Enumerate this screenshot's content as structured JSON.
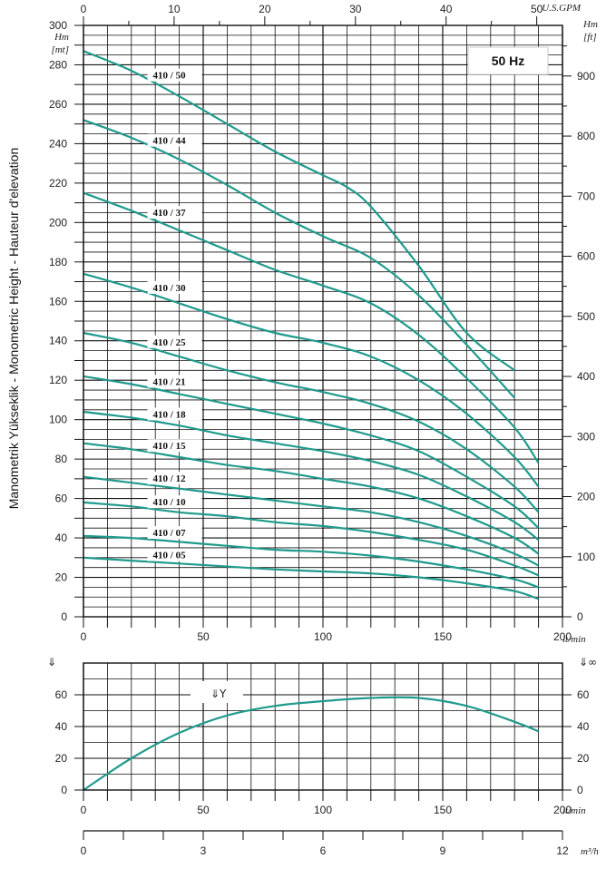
{
  "chart_data": [
    {
      "type": "line",
      "title": "",
      "frequency_label": "50 Hz",
      "side_label": "Manometrik Yükseklik - Monometric Height - Hauteur d'elevation",
      "ylabel_left": [
        "Hm",
        "[mt]"
      ],
      "ylabel_right": [
        "Hm",
        "[ft]"
      ],
      "xlabel_top": "U.S.GPM",
      "xlabel_bottom": "lt/min",
      "xlim": [
        0,
        200
      ],
      "ylim": [
        0,
        300
      ],
      "ylim_right_ft": [
        0,
        984
      ],
      "x_ticks": [
        0,
        50,
        100,
        150,
        200
      ],
      "y_ticks": [
        0,
        20,
        40,
        60,
        80,
        100,
        120,
        140,
        160,
        180,
        200,
        220,
        240,
        260,
        280,
        300
      ],
      "top_ticks_gpm": [
        0,
        10,
        20,
        30,
        40,
        50
      ],
      "right_ticks_ft": [
        0,
        100,
        200,
        300,
        400,
        500,
        600,
        700,
        800,
        900
      ],
      "grid": true,
      "series": [
        {
          "name": "410 / 50",
          "x": [
            0,
            20,
            40,
            60,
            80,
            100,
            110,
            120,
            140,
            160,
            180
          ],
          "y": [
            287,
            277,
            264,
            250,
            236,
            224,
            218,
            208,
            178,
            144,
            125
          ]
        },
        {
          "name": "410 / 44",
          "x": [
            0,
            20,
            40,
            60,
            80,
            100,
            120,
            140,
            160,
            180
          ],
          "y": [
            252,
            243,
            232,
            219,
            205,
            193,
            182,
            163,
            138,
            111
          ]
        },
        {
          "name": "410 / 37",
          "x": [
            0,
            20,
            40,
            60,
            80,
            100,
            120,
            140,
            160,
            180,
            190
          ],
          "y": [
            215,
            206,
            196,
            186,
            176,
            168,
            159,
            143,
            121,
            96,
            78
          ]
        },
        {
          "name": "410 / 30",
          "x": [
            0,
            20,
            40,
            60,
            80,
            100,
            120,
            140,
            160,
            180,
            190
          ],
          "y": [
            174,
            167,
            159,
            151,
            144,
            139,
            132,
            120,
            103,
            81,
            66
          ]
        },
        {
          "name": "410 / 25",
          "x": [
            0,
            20,
            40,
            60,
            80,
            100,
            120,
            140,
            160,
            180,
            190
          ],
          "y": [
            144,
            139,
            132,
            125,
            119,
            114,
            108,
            99,
            85,
            66,
            53
          ]
        },
        {
          "name": "410 / 21",
          "x": [
            0,
            20,
            40,
            60,
            80,
            100,
            120,
            140,
            160,
            180,
            190
          ],
          "y": [
            122,
            118,
            113,
            108,
            103,
            98,
            92,
            84,
            71,
            56,
            45
          ]
        },
        {
          "name": "410 / 18",
          "x": [
            0,
            20,
            40,
            60,
            80,
            100,
            120,
            140,
            160,
            180,
            190
          ],
          "y": [
            104,
            101,
            97,
            92,
            88,
            84,
            79,
            72,
            61,
            48,
            39
          ]
        },
        {
          "name": "410 / 15",
          "x": [
            0,
            20,
            40,
            60,
            80,
            100,
            120,
            140,
            160,
            180,
            190
          ],
          "y": [
            88,
            85,
            81,
            77,
            74,
            70,
            66,
            60,
            51,
            40,
            32
          ]
        },
        {
          "name": "410 / 12",
          "x": [
            0,
            20,
            40,
            60,
            80,
            100,
            120,
            140,
            160,
            180,
            190
          ],
          "y": [
            71,
            68,
            65,
            62,
            59,
            56,
            53,
            48,
            41,
            32,
            26
          ]
        },
        {
          "name": "410 / 10",
          "x": [
            0,
            20,
            40,
            60,
            80,
            100,
            120,
            140,
            160,
            180,
            190
          ],
          "y": [
            58,
            56,
            53,
            51,
            48,
            46,
            43,
            39,
            34,
            26,
            21
          ]
        },
        {
          "name": "410 / 07",
          "x": [
            0,
            20,
            40,
            60,
            80,
            100,
            120,
            140,
            160,
            180,
            190
          ],
          "y": [
            41,
            40,
            38,
            36,
            34,
            33,
            31,
            28,
            24,
            19,
            15
          ]
        },
        {
          "name": "410 / 05",
          "x": [
            0,
            20,
            40,
            60,
            80,
            100,
            120,
            140,
            160,
            180,
            190
          ],
          "y": [
            30,
            28.5,
            27,
            25.5,
            24,
            23,
            22,
            20,
            17,
            13,
            9
          ]
        }
      ]
    },
    {
      "type": "line",
      "title": "",
      "xlabel": "lt/min",
      "xlabel2": "m³/h",
      "xlim": [
        0,
        200
      ],
      "ylim": [
        0,
        80
      ],
      "x_ticks": [
        0,
        50,
        100,
        150,
        200
      ],
      "x2_ticks": [
        0,
        3,
        6,
        9,
        12
      ],
      "y_ticks": [
        0,
        20,
        40,
        60
      ],
      "left_symbol": "⇓",
      "right_symbol": "⇓∞",
      "efficiency_label": "⇓Y",
      "grid": true,
      "series": [
        {
          "name": "",
          "x": [
            0,
            20,
            40,
            60,
            80,
            100,
            120,
            140,
            160,
            180,
            190
          ],
          "y": [
            0,
            20,
            36,
            47,
            53,
            56,
            58,
            58,
            53,
            43,
            37
          ]
        }
      ]
    }
  ]
}
